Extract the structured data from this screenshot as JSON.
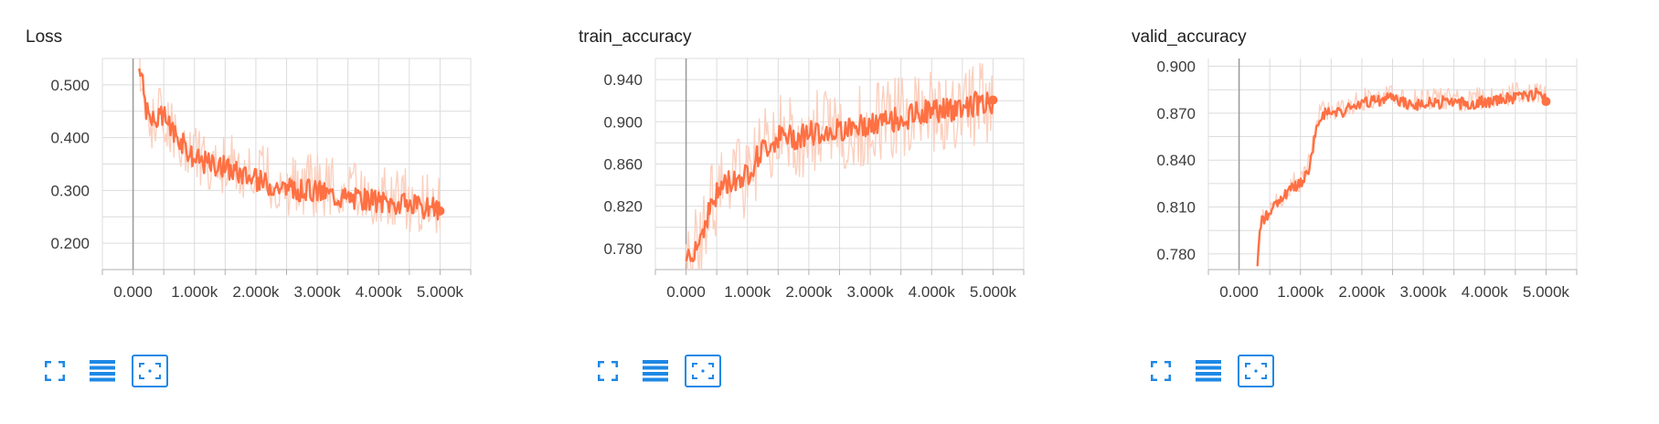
{
  "colors": {
    "series": "#ff7043",
    "series_light": "#fbd0bf",
    "grid": "#dcdcdc",
    "axis": "#b0b0b0",
    "zero_line": "#999999",
    "icon": "#1e88e5"
  },
  "toolbar_icons": [
    "fullscreen-icon",
    "data-table-icon",
    "fit-domain-icon"
  ],
  "chart_data": [
    {
      "type": "line",
      "title": "Loss",
      "xlabel": "",
      "ylabel": "",
      "xlim": [
        -0.5,
        5.5
      ],
      "ylim": [
        0.15,
        0.55
      ],
      "x_ticks": [
        0,
        1,
        2,
        3,
        4,
        5
      ],
      "x_tick_labels": [
        "0.000",
        "1.000k",
        "2.000k",
        "3.000k",
        "4.000k",
        "5.000k"
      ],
      "y_ticks": [
        0.2,
        0.3,
        0.4,
        0.5
      ],
      "y_tick_labels": [
        "0.200",
        "0.300",
        "0.400",
        "0.500"
      ],
      "grid": true,
      "x_units": "thousand steps",
      "smoothed": {
        "x": [
          0.1,
          0.2,
          0.3,
          0.5,
          0.8,
          1.0,
          1.3,
          1.6,
          1.8,
          2.0,
          2.3,
          2.6,
          3.0,
          3.3,
          3.6,
          4.0,
          4.3,
          4.6,
          4.8,
          5.0
        ],
        "y": [
          0.55,
          0.46,
          0.43,
          0.44,
          0.39,
          0.36,
          0.35,
          0.34,
          0.33,
          0.32,
          0.31,
          0.3,
          0.3,
          0.29,
          0.285,
          0.28,
          0.275,
          0.27,
          0.265,
          0.265
        ]
      },
      "raw_band": {
        "low": 0.05,
        "high": 0.07
      },
      "noise": 0.022
    },
    {
      "type": "line",
      "title": "train_accuracy",
      "xlabel": "",
      "ylabel": "",
      "xlim": [
        -0.5,
        5.5
      ],
      "ylim": [
        0.76,
        0.96
      ],
      "x_ticks": [
        0,
        1,
        2,
        3,
        4,
        5
      ],
      "x_tick_labels": [
        "0.000",
        "1.000k",
        "2.000k",
        "3.000k",
        "4.000k",
        "5.000k"
      ],
      "y_ticks": [
        0.78,
        0.82,
        0.86,
        0.9,
        0.94
      ],
      "y_tick_labels": [
        "0.780",
        "0.820",
        "0.860",
        "0.900",
        "0.940"
      ],
      "grid": true,
      "x_units": "thousand steps",
      "smoothed": {
        "x": [
          0.0,
          0.2,
          0.4,
          0.6,
          0.8,
          1.0,
          1.2,
          1.5,
          1.8,
          2.0,
          2.3,
          2.6,
          3.0,
          3.3,
          3.6,
          4.0,
          4.3,
          4.6,
          4.8,
          5.0
        ],
        "y": [
          0.77,
          0.785,
          0.82,
          0.84,
          0.845,
          0.85,
          0.87,
          0.885,
          0.885,
          0.89,
          0.89,
          0.895,
          0.895,
          0.9,
          0.905,
          0.91,
          0.912,
          0.915,
          0.918,
          0.915
        ]
      },
      "raw_band": {
        "low": 0.04,
        "high": 0.04
      },
      "noise": 0.012
    },
    {
      "type": "line",
      "title": "valid_accuracy",
      "xlabel": "",
      "ylabel": "",
      "xlim": [
        -0.5,
        5.5
      ],
      "ylim": [
        0.77,
        0.905
      ],
      "x_ticks": [
        0,
        1,
        2,
        3,
        4,
        5
      ],
      "x_tick_labels": [
        "0.000",
        "1.000k",
        "2.000k",
        "3.000k",
        "4.000k",
        "5.000k"
      ],
      "y_ticks": [
        0.78,
        0.81,
        0.84,
        0.87,
        0.9
      ],
      "y_tick_labels": [
        "0.780",
        "0.810",
        "0.840",
        "0.870",
        "0.900"
      ],
      "grid": true,
      "x_units": "thousand steps",
      "smoothed": {
        "x": [
          0.3,
          0.35,
          0.45,
          0.6,
          0.8,
          1.0,
          1.15,
          1.25,
          1.35,
          1.6,
          1.9,
          2.2,
          2.5,
          2.8,
          3.0,
          3.3,
          3.6,
          4.0,
          4.3,
          4.6,
          4.8,
          5.0
        ],
        "y": [
          0.77,
          0.8,
          0.805,
          0.81,
          0.82,
          0.825,
          0.835,
          0.86,
          0.87,
          0.87,
          0.875,
          0.878,
          0.879,
          0.876,
          0.876,
          0.877,
          0.876,
          0.877,
          0.879,
          0.881,
          0.882,
          0.881
        ]
      },
      "raw_band": {
        "low": 0.005,
        "high": 0.01
      },
      "noise": 0.004
    }
  ]
}
